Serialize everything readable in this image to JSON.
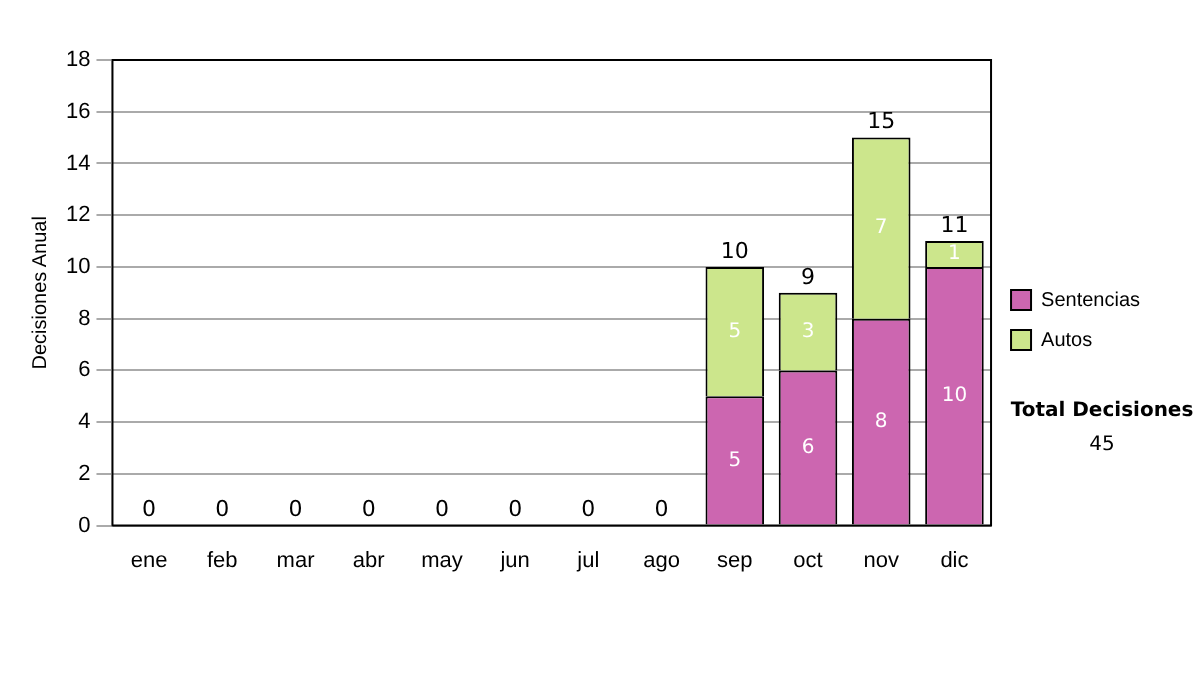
{
  "chart_data": {
    "type": "bar",
    "stacked": true,
    "ylabel": "Decisiones Anual",
    "categories": [
      "ene",
      "feb",
      "mar",
      "abr",
      "may",
      "jun",
      "jul",
      "ago",
      "sep",
      "oct",
      "nov",
      "dic"
    ],
    "series": [
      {
        "name": "Sentencias",
        "color": "#cc66b0",
        "values": [
          0,
          0,
          0,
          0,
          0,
          0,
          0,
          0,
          5,
          6,
          8,
          10
        ],
        "value_labels": [
          null,
          null,
          null,
          null,
          null,
          null,
          null,
          null,
          "5",
          "6",
          "8",
          "10"
        ]
      },
      {
        "name": "Autos",
        "color": "#cce68c",
        "values": [
          0,
          0,
          0,
          0,
          0,
          0,
          0,
          0,
          5,
          3,
          7,
          1
        ],
        "value_labels": [
          null,
          null,
          null,
          null,
          null,
          null,
          null,
          null,
          "5",
          "3",
          "7",
          "1"
        ]
      }
    ],
    "totals": [
      "0",
      "0",
      "0",
      "0",
      "0",
      "0",
      "0",
      "0",
      "10",
      "9",
      "15",
      "11"
    ],
    "ylim": [
      0,
      18
    ],
    "yticks": [
      0,
      2,
      4,
      6,
      8,
      10,
      12,
      14,
      16,
      18
    ],
    "grid": "y",
    "legend": "right",
    "annotations": [
      "Total Decisiones",
      "45"
    ]
  }
}
